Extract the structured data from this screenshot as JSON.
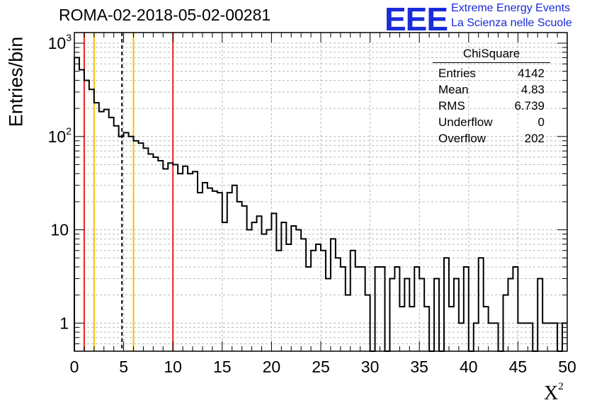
{
  "header": {
    "title": "ROMA-02-2018-05-02-00281",
    "logo_mark": "EEE",
    "logo_line1": "Extreme Energy Events",
    "logo_line2": "La Scienza nelle Scuole"
  },
  "stats_box": {
    "title": "ChiSquare",
    "rows": [
      {
        "label": "Entries",
        "value": "4142"
      },
      {
        "label": "Mean",
        "value": "4.83"
      },
      {
        "label": "RMS",
        "value": "6.739"
      },
      {
        "label": "Underflow",
        "value": "0"
      },
      {
        "label": "Overflow",
        "value": "202"
      }
    ]
  },
  "chart_data": {
    "type": "histogram",
    "title": "ROMA-02-2018-05-02-00281",
    "xlabel": "X",
    "xlabel_superscript": "2",
    "ylabel": "Entries/bin",
    "x_range": [
      0,
      50
    ],
    "y_range": [
      0.5,
      1300
    ],
    "y_scale": "log",
    "grid": true,
    "bin_width": 0.5,
    "x_ticks": [
      0,
      5,
      10,
      15,
      20,
      25,
      30,
      35,
      40,
      45,
      50
    ],
    "y_ticks": [
      {
        "value": 1,
        "label": "1"
      },
      {
        "value": 10,
        "label": "10"
      },
      {
        "value": 100,
        "label": "10",
        "sup": "2"
      },
      {
        "value": 1000,
        "label": "10",
        "sup": "3"
      }
    ],
    "bin_contents": [
      700,
      520,
      400,
      320,
      230,
      185,
      195,
      160,
      130,
      100,
      110,
      100,
      90,
      85,
      75,
      65,
      60,
      55,
      45,
      52,
      50,
      40,
      48,
      40,
      42,
      25,
      32,
      28,
      26,
      25,
      12,
      25,
      30,
      20,
      18,
      10,
      12,
      14,
      9,
      10,
      15,
      6,
      12,
      7,
      11,
      10,
      8,
      4,
      6,
      7,
      6,
      3,
      8,
      5,
      4,
      2,
      6,
      4,
      4,
      2,
      0,
      4,
      4,
      0,
      3,
      4,
      1.5,
      3,
      1.5,
      4,
      3,
      1.5,
      0,
      3,
      0,
      5,
      1.5,
      3,
      1,
      4,
      0,
      1,
      5,
      1.5,
      1,
      1,
      0,
      2,
      3,
      4,
      1,
      1,
      1,
      0,
      3,
      1,
      1,
      1,
      0,
      1
    ],
    "vertical_lines": [
      {
        "x": 1,
        "color": "#e8241c",
        "style": "solid"
      },
      {
        "x": 2,
        "color": "#f5c200",
        "style": "solid"
      },
      {
        "x": 4.83,
        "color": "#000000",
        "style": "dashed"
      },
      {
        "x": 6,
        "color": "#f5c200",
        "style": "solid"
      },
      {
        "x": 10,
        "color": "#e8241c",
        "style": "solid"
      }
    ]
  }
}
